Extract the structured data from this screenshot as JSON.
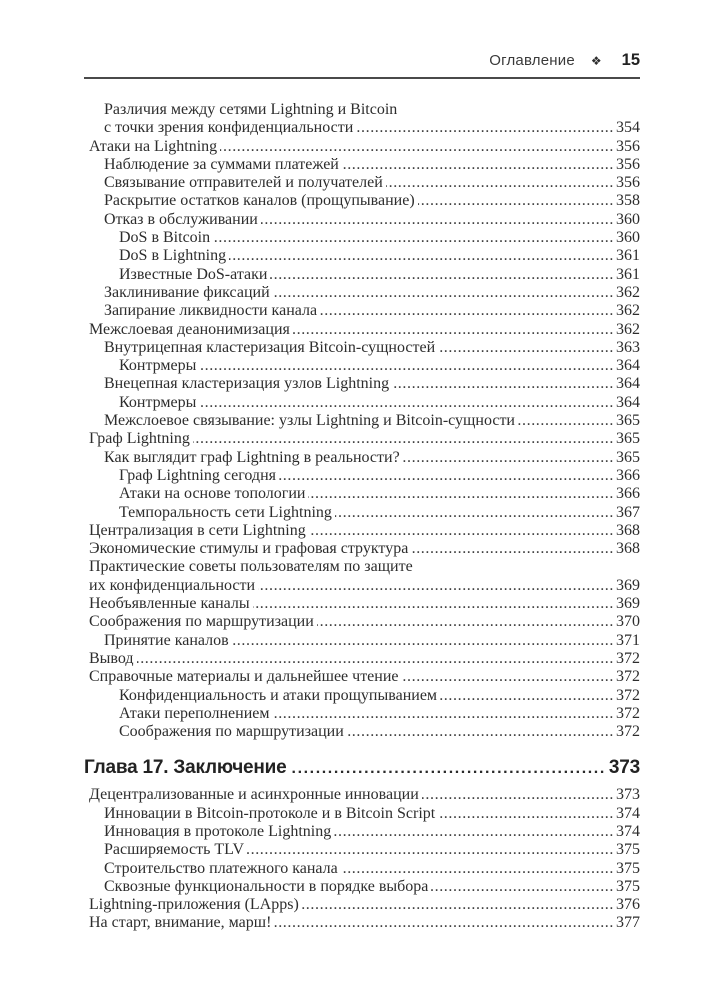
{
  "header": {
    "section_label": "Оглавление",
    "ornament": "❖",
    "page_number": "15"
  },
  "colors": {
    "text": "#2d2d2d",
    "rule": "#4a4a4a",
    "background": "#ffffff"
  },
  "toc_entries": [
    {
      "level": 1,
      "lines": [
        "Различия между сетями Lightning и Bitcoin",
        "с точки зрения конфиденциальности"
      ],
      "page": "354"
    },
    {
      "level": 0,
      "lines": [
        "Атаки на Lightning"
      ],
      "page": "356"
    },
    {
      "level": 1,
      "lines": [
        "Наблюдение за суммами платежей"
      ],
      "page": "356"
    },
    {
      "level": 1,
      "lines": [
        "Связывание отправителей и получателей"
      ],
      "page": "356"
    },
    {
      "level": 1,
      "lines": [
        "Раскрытие остатков каналов (прощупывание)"
      ],
      "page": "358"
    },
    {
      "level": 1,
      "lines": [
        "Отказ в обслуживании"
      ],
      "page": "360"
    },
    {
      "level": 2,
      "lines": [
        "DoS в Bitcoin"
      ],
      "page": "360"
    },
    {
      "level": 2,
      "lines": [
        "DoS в Lightning"
      ],
      "page": "361"
    },
    {
      "level": 2,
      "lines": [
        "Известные DoS-атаки"
      ],
      "page": "361"
    },
    {
      "level": 1,
      "lines": [
        "Заклинивание фиксаций"
      ],
      "page": "362"
    },
    {
      "level": 1,
      "lines": [
        "Запирание ликвидности канала"
      ],
      "page": "362"
    },
    {
      "level": 0,
      "lines": [
        "Межслоевая деанонимизация"
      ],
      "page": "362"
    },
    {
      "level": 1,
      "lines": [
        "Внутрицепная кластеризация Bitcoin-сущностей"
      ],
      "page": "363"
    },
    {
      "level": 2,
      "lines": [
        "Контрмеры"
      ],
      "page": "364"
    },
    {
      "level": 1,
      "lines": [
        "Внецепная кластеризация узлов Lightning"
      ],
      "page": "364"
    },
    {
      "level": 2,
      "lines": [
        "Контрмеры"
      ],
      "page": "364"
    },
    {
      "level": 1,
      "lines": [
        "Межслоевое связывание: узлы Lightning и Bitcoin-сущности"
      ],
      "page": "365"
    },
    {
      "level": 0,
      "lines": [
        "Граф Lightning"
      ],
      "page": "365"
    },
    {
      "level": 1,
      "lines": [
        "Как выглядит граф Lightning в реальности?"
      ],
      "page": "365"
    },
    {
      "level": 2,
      "lines": [
        "Граф Lightning сегодня"
      ],
      "page": "366"
    },
    {
      "level": 2,
      "lines": [
        "Атаки на основе топологии"
      ],
      "page": "366"
    },
    {
      "level": 2,
      "lines": [
        "Темпоральность сети Lightning"
      ],
      "page": "367"
    },
    {
      "level": 0,
      "lines": [
        "Централизация в сети Lightning"
      ],
      "page": "368"
    },
    {
      "level": 0,
      "lines": [
        "Экономические стимулы и графовая структура"
      ],
      "page": "368"
    },
    {
      "level": 0,
      "lines": [
        "Практические советы пользователям по защите",
        "их конфиденциальности"
      ],
      "page": "369"
    },
    {
      "level": 0,
      "lines": [
        "Необъявленные каналы"
      ],
      "page": "369"
    },
    {
      "level": 0,
      "lines": [
        "Соображения по маршрутизации"
      ],
      "page": "370"
    },
    {
      "level": 1,
      "lines": [
        "Принятие каналов"
      ],
      "page": "371"
    },
    {
      "level": 0,
      "lines": [
        "Вывод"
      ],
      "page": "372"
    },
    {
      "level": 0,
      "lines": [
        "Справочные материалы и дальнейшее чтение"
      ],
      "page": "372"
    },
    {
      "level": 2,
      "lines": [
        "Конфиденциальность и атаки прощупыванием"
      ],
      "page": "372"
    },
    {
      "level": 2,
      "lines": [
        "Атаки переполнением"
      ],
      "page": "372"
    },
    {
      "level": 2,
      "lines": [
        "Соображения по маршрутизации"
      ],
      "page": "372"
    },
    {
      "type": "chapter",
      "level": 0,
      "lines": [
        "Глава 17. Заключение"
      ],
      "page": "373"
    },
    {
      "level": 0,
      "lines": [
        "Децентрализованные и асинхронные инновации"
      ],
      "page": "373"
    },
    {
      "level": 1,
      "lines": [
        "Инновации в Bitcoin-протоколе и в Bitcoin Script"
      ],
      "page": "374"
    },
    {
      "level": 1,
      "lines": [
        "Инновация в протоколе Lightning"
      ],
      "page": "374"
    },
    {
      "level": 1,
      "lines": [
        "Расширяемость TLV"
      ],
      "page": "375"
    },
    {
      "level": 1,
      "lines": [
        "Строительство платежного канала"
      ],
      "page": "375"
    },
    {
      "level": 1,
      "lines": [
        "Сквозные функциональности в порядке выбора"
      ],
      "page": "375"
    },
    {
      "level": 0,
      "lines": [
        "Lightning-приложения (LApps)"
      ],
      "page": "376"
    },
    {
      "level": 0,
      "lines": [
        "На старт, внимание, марш!"
      ],
      "page": "377"
    }
  ]
}
